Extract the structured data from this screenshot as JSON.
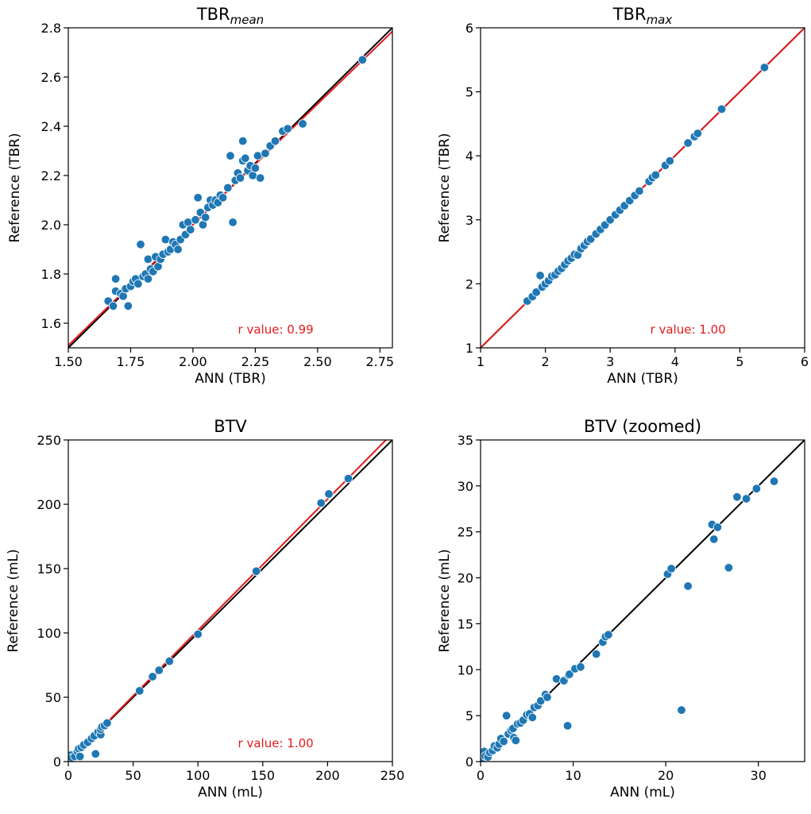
{
  "chart_data": [
    {
      "type": "scatter",
      "title": {
        "base": "TBR",
        "sub": "mean"
      },
      "xlabel": "ANN (TBR)",
      "ylabel": "Reference (TBR)",
      "xlim": [
        1.5,
        2.8
      ],
      "ylim": [
        1.5,
        2.8
      ],
      "xticks": [
        "1.50",
        "1.75",
        "2.00",
        "2.25",
        "2.50",
        "2.75"
      ],
      "yticks": [
        "1.6",
        "1.8",
        "2.0",
        "2.2",
        "2.4",
        "2.6",
        "2.8"
      ],
      "annotation": "r value: 0.99",
      "identity_line": [
        [
          1.5,
          1.5
        ],
        [
          2.8,
          2.8
        ]
      ],
      "fit_line": [
        [
          1.5,
          1.51
        ],
        [
          2.8,
          2.785
        ]
      ],
      "points": [
        [
          1.66,
          1.69
        ],
        [
          1.68,
          1.67
        ],
        [
          1.69,
          1.73
        ],
        [
          1.69,
          1.78
        ],
        [
          1.71,
          1.72
        ],
        [
          1.72,
          1.71
        ],
        [
          1.73,
          1.74
        ],
        [
          1.74,
          1.67
        ],
        [
          1.75,
          1.75
        ],
        [
          1.76,
          1.77
        ],
        [
          1.77,
          1.78
        ],
        [
          1.78,
          1.76
        ],
        [
          1.79,
          1.92
        ],
        [
          1.8,
          1.79
        ],
        [
          1.81,
          1.8
        ],
        [
          1.82,
          1.78
        ],
        [
          1.82,
          1.86
        ],
        [
          1.83,
          1.82
        ],
        [
          1.84,
          1.81
        ],
        [
          1.85,
          1.87
        ],
        [
          1.86,
          1.83
        ],
        [
          1.87,
          1.86
        ],
        [
          1.88,
          1.88
        ],
        [
          1.89,
          1.94
        ],
        [
          1.9,
          1.89
        ],
        [
          1.91,
          1.9
        ],
        [
          1.92,
          1.93
        ],
        [
          1.93,
          1.92
        ],
        [
          1.94,
          1.9
        ],
        [
          1.95,
          1.94
        ],
        [
          1.96,
          2.0
        ],
        [
          1.97,
          1.96
        ],
        [
          1.98,
          2.01
        ],
        [
          1.99,
          1.98
        ],
        [
          2.01,
          2.02
        ],
        [
          2.02,
          2.11
        ],
        [
          2.03,
          2.05
        ],
        [
          2.04,
          2.0
        ],
        [
          2.05,
          2.03
        ],
        [
          2.06,
          2.07
        ],
        [
          2.07,
          2.1
        ],
        [
          2.08,
          2.08
        ],
        [
          2.09,
          2.1
        ],
        [
          2.1,
          2.09
        ],
        [
          2.11,
          2.12
        ],
        [
          2.12,
          2.11
        ],
        [
          2.14,
          2.15
        ],
        [
          2.15,
          2.28
        ],
        [
          2.16,
          2.01
        ],
        [
          2.17,
          2.18
        ],
        [
          2.18,
          2.21
        ],
        [
          2.19,
          2.19
        ],
        [
          2.2,
          2.26
        ],
        [
          2.2,
          2.34
        ],
        [
          2.21,
          2.27
        ],
        [
          2.22,
          2.22
        ],
        [
          2.23,
          2.24
        ],
        [
          2.24,
          2.2
        ],
        [
          2.25,
          2.23
        ],
        [
          2.26,
          2.28
        ],
        [
          2.27,
          2.19
        ],
        [
          2.29,
          2.29
        ],
        [
          2.31,
          2.32
        ],
        [
          2.33,
          2.34
        ],
        [
          2.36,
          2.38
        ],
        [
          2.38,
          2.39
        ],
        [
          2.44,
          2.41
        ],
        [
          2.68,
          2.67
        ]
      ]
    },
    {
      "type": "scatter",
      "title": {
        "base": "TBR",
        "sub": "max"
      },
      "xlabel": "ANN (TBR)",
      "ylabel": "Reference (TBR)",
      "xlim": [
        1,
        6
      ],
      "ylim": [
        1,
        6
      ],
      "xticks": [
        "1",
        "2",
        "3",
        "4",
        "5",
        "6"
      ],
      "yticks": [
        "1",
        "2",
        "3",
        "4",
        "5",
        "6"
      ],
      "annotation": "r value: 1.00",
      "identity_line": [
        [
          1,
          1
        ],
        [
          6,
          6
        ]
      ],
      "fit_line": [
        [
          1,
          1
        ],
        [
          6,
          6
        ]
      ],
      "points": [
        [
          1.72,
          1.73
        ],
        [
          1.8,
          1.8
        ],
        [
          1.86,
          1.87
        ],
        [
          1.92,
          2.13
        ],
        [
          1.95,
          1.95
        ],
        [
          2.0,
          2.0
        ],
        [
          2.05,
          2.05
        ],
        [
          2.1,
          2.12
        ],
        [
          2.15,
          2.14
        ],
        [
          2.2,
          2.2
        ],
        [
          2.25,
          2.24
        ],
        [
          2.3,
          2.3
        ],
        [
          2.35,
          2.36
        ],
        [
          2.4,
          2.4
        ],
        [
          2.45,
          2.46
        ],
        [
          2.5,
          2.45
        ],
        [
          2.55,
          2.55
        ],
        [
          2.6,
          2.6
        ],
        [
          2.65,
          2.66
        ],
        [
          2.7,
          2.7
        ],
        [
          2.78,
          2.78
        ],
        [
          2.85,
          2.85
        ],
        [
          2.92,
          2.92
        ],
        [
          3.0,
          3.0
        ],
        [
          3.08,
          3.08
        ],
        [
          3.15,
          3.15
        ],
        [
          3.22,
          3.22
        ],
        [
          3.3,
          3.3
        ],
        [
          3.38,
          3.38
        ],
        [
          3.45,
          3.45
        ],
        [
          3.6,
          3.6
        ],
        [
          3.65,
          3.66
        ],
        [
          3.7,
          3.7
        ],
        [
          3.85,
          3.85
        ],
        [
          3.92,
          3.92
        ],
        [
          4.2,
          4.2
        ],
        [
          4.3,
          4.3
        ],
        [
          4.35,
          4.35
        ],
        [
          4.72,
          4.73
        ],
        [
          5.38,
          5.38
        ]
      ]
    },
    {
      "type": "scatter",
      "title": {
        "base": "BTV",
        "sub": ""
      },
      "xlabel": "ANN (mL)",
      "ylabel": "Reference (mL)",
      "xlim": [
        0,
        250
      ],
      "ylim": [
        0,
        250
      ],
      "xticks": [
        "0",
        "50",
        "100",
        "150",
        "200",
        "250"
      ],
      "yticks": [
        "0",
        "50",
        "100",
        "150",
        "200",
        "250"
      ],
      "annotation": "r value: 1.00",
      "identity_line": [
        [
          0,
          0
        ],
        [
          250,
          250
        ]
      ],
      "fit_line": [
        [
          0,
          0
        ],
        [
          245,
          250
        ]
      ],
      "points": [
        [
          1,
          1
        ],
        [
          2,
          5
        ],
        [
          3,
          3
        ],
        [
          5,
          4
        ],
        [
          7,
          8
        ],
        [
          8,
          10
        ],
        [
          9,
          4
        ],
        [
          10,
          11
        ],
        [
          12,
          13
        ],
        [
          15,
          15
        ],
        [
          18,
          18
        ],
        [
          20,
          20
        ],
        [
          21,
          6
        ],
        [
          23,
          23
        ],
        [
          25,
          21
        ],
        [
          25,
          25
        ],
        [
          26,
          27
        ],
        [
          28,
          28
        ],
        [
          30,
          30
        ],
        [
          55,
          55
        ],
        [
          65,
          66
        ],
        [
          70,
          71
        ],
        [
          78,
          78
        ],
        [
          100,
          99
        ],
        [
          145,
          148
        ],
        [
          195,
          201
        ],
        [
          201,
          208
        ],
        [
          216,
          220
        ]
      ]
    },
    {
      "type": "scatter",
      "title": {
        "base": "BTV (zoomed)",
        "sub": ""
      },
      "xlabel": "ANN (mL)",
      "ylabel": "Reference (mL)",
      "xlim": [
        0,
        35
      ],
      "ylim": [
        0,
        35
      ],
      "xticks": [
        "0",
        "10",
        "20",
        "30"
      ],
      "yticks": [
        "0",
        "5",
        "10",
        "15",
        "20",
        "25",
        "30",
        "35"
      ],
      "annotation": "",
      "identity_line": [
        [
          0,
          0
        ],
        [
          35,
          35
        ]
      ],
      "fit_line": [],
      "points": [
        [
          0.2,
          0.3
        ],
        [
          0.4,
          1.1
        ],
        [
          0.5,
          0.6
        ],
        [
          0.8,
          0.5
        ],
        [
          1.0,
          1.0
        ],
        [
          1.3,
          1.2
        ],
        [
          1.5,
          1.7
        ],
        [
          1.8,
          1.5
        ],
        [
          2.0,
          1.9
        ],
        [
          2.2,
          2.5
        ],
        [
          2.5,
          2.2
        ],
        [
          2.8,
          5.0
        ],
        [
          3.0,
          3.0
        ],
        [
          3.3,
          3.4
        ],
        [
          3.5,
          3.6
        ],
        [
          3.6,
          2.6
        ],
        [
          3.8,
          2.3
        ],
        [
          4.0,
          4.1
        ],
        [
          4.3,
          4.2
        ],
        [
          4.6,
          4.5
        ],
        [
          5.0,
          5.1
        ],
        [
          5.3,
          5.2
        ],
        [
          5.6,
          4.8
        ],
        [
          5.8,
          5.9
        ],
        [
          6.2,
          6.1
        ],
        [
          6.5,
          6.6
        ],
        [
          7.0,
          7.3
        ],
        [
          7.2,
          7.0
        ],
        [
          8.2,
          9.0
        ],
        [
          9.0,
          8.8
        ],
        [
          9.4,
          3.9
        ],
        [
          9.5,
          9.4
        ],
        [
          9.6,
          9.5
        ],
        [
          10.2,
          10.1
        ],
        [
          10.8,
          10.3
        ],
        [
          12.5,
          11.7
        ],
        [
          13.2,
          13.0
        ],
        [
          13.5,
          13.6
        ],
        [
          13.8,
          13.8
        ],
        [
          20.2,
          20.4
        ],
        [
          20.6,
          21.0
        ],
        [
          21.7,
          5.6
        ],
        [
          22.4,
          19.1
        ],
        [
          25.0,
          25.8
        ],
        [
          25.2,
          24.2
        ],
        [
          25.6,
          25.5
        ],
        [
          26.8,
          21.1
        ],
        [
          27.7,
          28.8
        ],
        [
          28.7,
          28.6
        ],
        [
          29.8,
          29.7
        ],
        [
          31.7,
          30.5
        ]
      ]
    }
  ]
}
